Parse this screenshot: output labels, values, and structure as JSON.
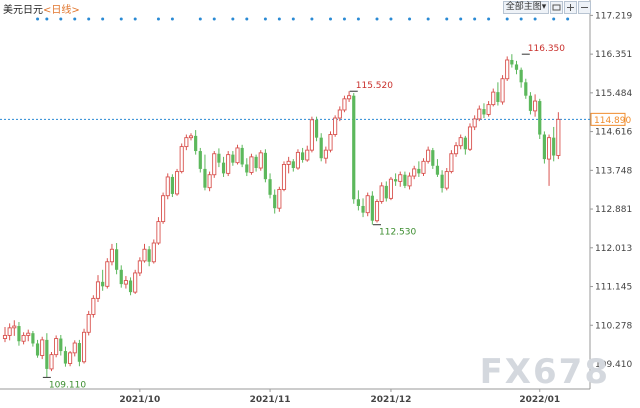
{
  "header": {
    "instrument": "美元日元",
    "period_open": "<",
    "period": "日线",
    "period_close": ">"
  },
  "controls": {
    "indicator_menu": "全部主图",
    "colors": {
      "bg": "#eef2f7",
      "border": "#b8c4d2"
    }
  },
  "watermark": "FX678",
  "colors": {
    "up": "#d9534f",
    "down": "#5cb85c",
    "marker_dot": "#2a8ad4",
    "last_price_line": "#2a8ad4",
    "last_price_tag": "#f08c2c",
    "axis_text": "#444444",
    "grid_line": "#dcdcdc"
  },
  "chart_data": {
    "type": "candlestick",
    "title": "美元日元",
    "period": "日线",
    "y_axis_ticks": [
      "117.219",
      "116.351",
      "115.484",
      "114.616",
      "113.748",
      "112.881",
      "112.013",
      "111.145",
      "110.278",
      "109.410"
    ],
    "ylim": [
      108.85,
      117.25
    ],
    "x_axis_labels": [
      {
        "label": "2021/10",
        "index": 29
      },
      {
        "label": "2021/11",
        "index": 57
      },
      {
        "label": "2021/12",
        "index": 83
      },
      {
        "label": "2022/01",
        "index": 115
      }
    ],
    "last_price": "114.890",
    "annotations": [
      {
        "text": "109.110",
        "index": 9,
        "value": 109.11,
        "type": "low"
      },
      {
        "text": "115.520",
        "index": 75,
        "value": 115.52,
        "type": "high"
      },
      {
        "text": "112.530",
        "index": 80,
        "value": 112.53,
        "type": "low"
      },
      {
        "text": "116.350",
        "index": 112,
        "value": 116.35,
        "type": "high"
      }
    ],
    "marker_indices": [
      7,
      9,
      12,
      15,
      18,
      21,
      25,
      28,
      33,
      36,
      42,
      45,
      49,
      52,
      56,
      59,
      62,
      66,
      70,
      73,
      76,
      80,
      83,
      87,
      91,
      95,
      98,
      101,
      104,
      108,
      111,
      114,
      118,
      121
    ],
    "candles": [
      {
        "o": 109.98,
        "h": 110.24,
        "l": 109.9,
        "c": 110.05
      },
      {
        "o": 110.05,
        "h": 110.32,
        "l": 109.94,
        "c": 110.22
      },
      {
        "o": 110.22,
        "h": 110.39,
        "l": 110.04,
        "c": 110.26
      },
      {
        "o": 110.26,
        "h": 110.35,
        "l": 109.82,
        "c": 109.92
      },
      {
        "o": 109.92,
        "h": 110.12,
        "l": 109.85,
        "c": 110.05
      },
      {
        "o": 110.05,
        "h": 110.18,
        "l": 109.92,
        "c": 110.1
      },
      {
        "o": 110.1,
        "h": 110.15,
        "l": 109.8,
        "c": 109.87
      },
      {
        "o": 109.87,
        "h": 109.95,
        "l": 109.55,
        "c": 109.6
      },
      {
        "o": 109.6,
        "h": 110.02,
        "l": 109.52,
        "c": 109.95
      },
      {
        "o": 109.95,
        "h": 110.1,
        "l": 109.11,
        "c": 109.3
      },
      {
        "o": 109.3,
        "h": 109.68,
        "l": 109.25,
        "c": 109.62
      },
      {
        "o": 109.62,
        "h": 110.05,
        "l": 109.56,
        "c": 109.98
      },
      {
        "o": 109.98,
        "h": 110.06,
        "l": 109.6,
        "c": 109.7
      },
      {
        "o": 109.7,
        "h": 109.8,
        "l": 109.35,
        "c": 109.42
      },
      {
        "o": 109.42,
        "h": 109.7,
        "l": 109.36,
        "c": 109.66
      },
      {
        "o": 109.66,
        "h": 109.94,
        "l": 109.58,
        "c": 109.88
      },
      {
        "o": 109.88,
        "h": 109.95,
        "l": 109.36,
        "c": 109.46
      },
      {
        "o": 109.46,
        "h": 110.2,
        "l": 109.42,
        "c": 110.12
      },
      {
        "o": 110.12,
        "h": 110.6,
        "l": 110.05,
        "c": 110.52
      },
      {
        "o": 110.52,
        "h": 110.95,
        "l": 110.45,
        "c": 110.88
      },
      {
        "o": 110.88,
        "h": 111.4,
        "l": 110.8,
        "c": 111.25
      },
      {
        "o": 111.25,
        "h": 111.52,
        "l": 111.05,
        "c": 111.15
      },
      {
        "o": 111.15,
        "h": 111.78,
        "l": 111.1,
        "c": 111.7
      },
      {
        "o": 111.7,
        "h": 112.1,
        "l": 111.62,
        "c": 111.98
      },
      {
        "o": 111.98,
        "h": 112.12,
        "l": 111.42,
        "c": 111.52
      },
      {
        "o": 111.52,
        "h": 111.62,
        "l": 111.12,
        "c": 111.2
      },
      {
        "o": 111.2,
        "h": 111.38,
        "l": 111.1,
        "c": 111.28
      },
      {
        "o": 111.28,
        "h": 111.35,
        "l": 110.95,
        "c": 111.02
      },
      {
        "o": 111.02,
        "h": 111.52,
        "l": 110.98,
        "c": 111.45
      },
      {
        "o": 111.45,
        "h": 111.8,
        "l": 111.38,
        "c": 111.72
      },
      {
        "o": 111.72,
        "h": 112.1,
        "l": 111.68,
        "c": 111.98
      },
      {
        "o": 111.98,
        "h": 112.05,
        "l": 111.6,
        "c": 111.7
      },
      {
        "o": 111.7,
        "h": 112.2,
        "l": 111.66,
        "c": 112.12
      },
      {
        "o": 112.12,
        "h": 112.7,
        "l": 112.08,
        "c": 112.6
      },
      {
        "o": 112.6,
        "h": 113.25,
        "l": 112.55,
        "c": 113.18
      },
      {
        "o": 113.18,
        "h": 113.68,
        "l": 113.1,
        "c": 113.6
      },
      {
        "o": 113.6,
        "h": 113.66,
        "l": 113.15,
        "c": 113.22
      },
      {
        "o": 113.22,
        "h": 113.78,
        "l": 113.18,
        "c": 113.72
      },
      {
        "o": 113.72,
        "h": 114.35,
        "l": 113.68,
        "c": 114.28
      },
      {
        "o": 114.28,
        "h": 114.55,
        "l": 114.2,
        "c": 114.48
      },
      {
        "o": 114.48,
        "h": 114.58,
        "l": 114.42,
        "c": 114.52
      },
      {
        "o": 114.52,
        "h": 114.65,
        "l": 114.1,
        "c": 114.18
      },
      {
        "o": 114.18,
        "h": 114.25,
        "l": 113.7,
        "c": 113.78
      },
      {
        "o": 113.78,
        "h": 114.1,
        "l": 113.3,
        "c": 113.36
      },
      {
        "o": 113.36,
        "h": 113.72,
        "l": 113.28,
        "c": 113.65
      },
      {
        "o": 113.65,
        "h": 114.18,
        "l": 113.58,
        "c": 114.12
      },
      {
        "o": 114.12,
        "h": 114.24,
        "l": 113.82,
        "c": 113.92
      },
      {
        "o": 113.92,
        "h": 114.05,
        "l": 113.6,
        "c": 113.68
      },
      {
        "o": 113.68,
        "h": 114.18,
        "l": 113.62,
        "c": 114.1
      },
      {
        "o": 114.1,
        "h": 114.18,
        "l": 113.85,
        "c": 113.92
      },
      {
        "o": 113.92,
        "h": 114.32,
        "l": 113.88,
        "c": 114.25
      },
      {
        "o": 114.25,
        "h": 114.32,
        "l": 113.82,
        "c": 113.88
      },
      {
        "o": 113.88,
        "h": 114.02,
        "l": 113.62,
        "c": 113.7
      },
      {
        "o": 113.7,
        "h": 114.12,
        "l": 113.65,
        "c": 114.05
      },
      {
        "o": 114.05,
        "h": 114.1,
        "l": 113.72,
        "c": 113.8
      },
      {
        "o": 113.8,
        "h": 114.2,
        "l": 113.74,
        "c": 114.14
      },
      {
        "o": 114.14,
        "h": 114.22,
        "l": 113.48,
        "c": 113.55
      },
      {
        "o": 113.55,
        "h": 113.68,
        "l": 113.12,
        "c": 113.2
      },
      {
        "o": 113.2,
        "h": 113.32,
        "l": 112.78,
        "c": 112.9
      },
      {
        "o": 112.9,
        "h": 113.38,
        "l": 112.82,
        "c": 113.32
      },
      {
        "o": 113.32,
        "h": 113.95,
        "l": 113.28,
        "c": 113.88
      },
      {
        "o": 113.88,
        "h": 114.05,
        "l": 113.68,
        "c": 113.95
      },
      {
        "o": 113.95,
        "h": 114.0,
        "l": 113.72,
        "c": 113.8
      },
      {
        "o": 113.8,
        "h": 114.22,
        "l": 113.76,
        "c": 114.15
      },
      {
        "o": 114.15,
        "h": 114.25,
        "l": 113.92,
        "c": 113.98
      },
      {
        "o": 113.98,
        "h": 114.3,
        "l": 113.94,
        "c": 114.2
      },
      {
        "o": 114.2,
        "h": 114.95,
        "l": 114.15,
        "c": 114.88
      },
      {
        "o": 114.88,
        "h": 114.95,
        "l": 114.4,
        "c": 114.48
      },
      {
        "o": 114.48,
        "h": 114.58,
        "l": 113.95,
        "c": 114.02
      },
      {
        "o": 114.02,
        "h": 114.28,
        "l": 113.9,
        "c": 114.2
      },
      {
        "o": 114.2,
        "h": 114.62,
        "l": 114.15,
        "c": 114.55
      },
      {
        "o": 114.55,
        "h": 114.98,
        "l": 114.5,
        "c": 114.92
      },
      {
        "o": 114.92,
        "h": 115.18,
        "l": 114.85,
        "c": 115.1
      },
      {
        "o": 115.1,
        "h": 115.42,
        "l": 115.05,
        "c": 115.35
      },
      {
        "o": 115.35,
        "h": 115.52,
        "l": 115.28,
        "c": 115.42
      },
      {
        "o": 115.42,
        "h": 115.48,
        "l": 113.0,
        "c": 113.1
      },
      {
        "o": 113.1,
        "h": 113.3,
        "l": 112.85,
        "c": 112.95
      },
      {
        "o": 112.95,
        "h": 113.12,
        "l": 112.7,
        "c": 112.8
      },
      {
        "o": 112.8,
        "h": 113.25,
        "l": 112.72,
        "c": 113.18
      },
      {
        "o": 113.18,
        "h": 113.28,
        "l": 112.53,
        "c": 112.62
      },
      {
        "o": 112.62,
        "h": 113.1,
        "l": 112.58,
        "c": 113.05
      },
      {
        "o": 113.05,
        "h": 113.48,
        "l": 113.0,
        "c": 113.4
      },
      {
        "o": 113.4,
        "h": 113.5,
        "l": 113.05,
        "c": 113.12
      },
      {
        "o": 113.12,
        "h": 113.6,
        "l": 113.08,
        "c": 113.55
      },
      {
        "o": 113.55,
        "h": 113.68,
        "l": 113.4,
        "c": 113.5
      },
      {
        "o": 113.5,
        "h": 113.72,
        "l": 113.38,
        "c": 113.65
      },
      {
        "o": 113.65,
        "h": 113.72,
        "l": 113.35,
        "c": 113.4
      },
      {
        "o": 113.4,
        "h": 113.7,
        "l": 113.32,
        "c": 113.62
      },
      {
        "o": 113.62,
        "h": 113.85,
        "l": 113.55,
        "c": 113.78
      },
      {
        "o": 113.78,
        "h": 113.95,
        "l": 113.6,
        "c": 113.68
      },
      {
        "o": 113.68,
        "h": 114.02,
        "l": 113.62,
        "c": 113.95
      },
      {
        "o": 113.95,
        "h": 114.28,
        "l": 113.9,
        "c": 114.2
      },
      {
        "o": 114.2,
        "h": 114.25,
        "l": 113.78,
        "c": 113.85
      },
      {
        "o": 113.85,
        "h": 114.0,
        "l": 113.6,
        "c": 113.65
      },
      {
        "o": 113.65,
        "h": 113.75,
        "l": 113.25,
        "c": 113.35
      },
      {
        "o": 113.35,
        "h": 113.8,
        "l": 113.3,
        "c": 113.72
      },
      {
        "o": 113.72,
        "h": 114.2,
        "l": 113.68,
        "c": 114.12
      },
      {
        "o": 114.12,
        "h": 114.38,
        "l": 114.05,
        "c": 114.3
      },
      {
        "o": 114.3,
        "h": 114.55,
        "l": 114.22,
        "c": 114.48
      },
      {
        "o": 114.48,
        "h": 114.52,
        "l": 114.1,
        "c": 114.22
      },
      {
        "o": 114.22,
        "h": 114.8,
        "l": 114.18,
        "c": 114.72
      },
      {
        "o": 114.72,
        "h": 114.98,
        "l": 114.65,
        "c": 114.9
      },
      {
        "o": 114.9,
        "h": 115.2,
        "l": 114.85,
        "c": 115.12
      },
      {
        "o": 115.12,
        "h": 115.25,
        "l": 114.92,
        "c": 115.0
      },
      {
        "o": 115.0,
        "h": 115.3,
        "l": 114.95,
        "c": 115.22
      },
      {
        "o": 115.22,
        "h": 115.58,
        "l": 115.18,
        "c": 115.5
      },
      {
        "o": 115.5,
        "h": 115.72,
        "l": 115.2,
        "c": 115.28
      },
      {
        "o": 115.28,
        "h": 115.88,
        "l": 115.22,
        "c": 115.8
      },
      {
        "o": 115.8,
        "h": 116.3,
        "l": 115.75,
        "c": 116.22
      },
      {
        "o": 116.22,
        "h": 116.35,
        "l": 116.05,
        "c": 116.12
      },
      {
        "o": 116.12,
        "h": 116.2,
        "l": 115.9,
        "c": 116.0
      },
      {
        "o": 116.0,
        "h": 116.05,
        "l": 115.6,
        "c": 115.72
      },
      {
        "o": 115.72,
        "h": 115.8,
        "l": 115.35,
        "c": 115.42
      },
      {
        "o": 115.42,
        "h": 115.5,
        "l": 115.0,
        "c": 115.08
      },
      {
        "o": 115.08,
        "h": 115.45,
        "l": 114.95,
        "c": 115.3
      },
      {
        "o": 115.3,
        "h": 115.35,
        "l": 114.45,
        "c": 114.55
      },
      {
        "o": 114.55,
        "h": 114.62,
        "l": 113.9,
        "c": 114.0
      },
      {
        "o": 114.0,
        "h": 114.55,
        "l": 113.4,
        "c": 114.48
      },
      {
        "o": 114.48,
        "h": 114.72,
        "l": 113.95,
        "c": 114.08
      },
      {
        "o": 114.08,
        "h": 115.05,
        "l": 114.0,
        "c": 114.89
      }
    ]
  }
}
